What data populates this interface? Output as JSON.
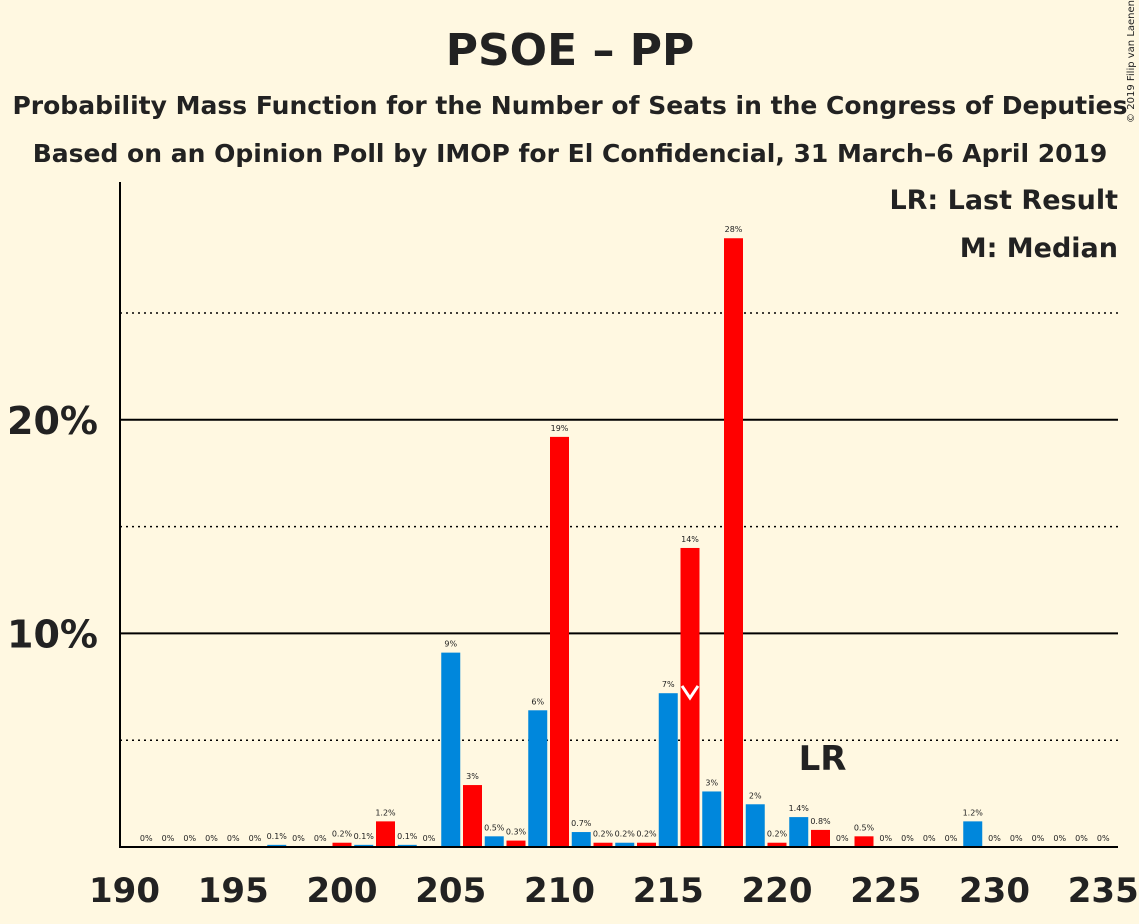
{
  "chart_data": {
    "type": "bar",
    "title": "PSOE – PP",
    "subtitle_1": "Probability Mass Function for the Number of Seats in the Congress of Deputies",
    "subtitle_2": "Based on an Opinion Poll by IMOP for El Confidencial, 31 March–6 April 2019",
    "copyright": "© 2019 Filip van Laenen",
    "legend": {
      "last_result": "LR: Last Result",
      "median": "M: Median",
      "placement": "top-right"
    },
    "lr_marker": {
      "x": 222,
      "label": "LR"
    },
    "median_marker": {
      "x": 216,
      "label": "M"
    },
    "xlim": [
      190,
      235
    ],
    "ylim": [
      0,
      0.31
    ],
    "x_ticks": [
      "190",
      "195",
      "200",
      "205",
      "210",
      "215",
      "220",
      "225",
      "230",
      "235"
    ],
    "y_ticks": [
      {
        "value": 0.1,
        "label": "10%"
      },
      {
        "value": 0.2,
        "label": "20%"
      }
    ],
    "dotted_gridlines": [
      0.05,
      0.15,
      0.25
    ],
    "colors": {
      "blue": "#0087DC",
      "red": "#FF0000",
      "axis": "#000000"
    },
    "bars": [
      {
        "x": 191,
        "value": 0.0,
        "label": "0%",
        "color": "blue"
      },
      {
        "x": 192,
        "value": 0.0,
        "label": "0%",
        "color": "red"
      },
      {
        "x": 193,
        "value": 0.0,
        "label": "0%",
        "color": "blue"
      },
      {
        "x": 194,
        "value": 0.0,
        "label": "0%",
        "color": "red"
      },
      {
        "x": 195,
        "value": 0.0,
        "label": "0%",
        "color": "blue"
      },
      {
        "x": 196,
        "value": 0.0,
        "label": "0%",
        "color": "red"
      },
      {
        "x": 197,
        "value": 0.001,
        "label": "0.1%",
        "color": "blue"
      },
      {
        "x": 198,
        "value": 0.0,
        "label": "0%",
        "color": "red"
      },
      {
        "x": 199,
        "value": 0.0,
        "label": "0%",
        "color": "blue"
      },
      {
        "x": 200,
        "value": 0.002,
        "label": "0.2%",
        "color": "red"
      },
      {
        "x": 201,
        "value": 0.001,
        "label": "0.1%",
        "color": "blue"
      },
      {
        "x": 202,
        "value": 0.012,
        "label": "1.2%",
        "color": "red"
      },
      {
        "x": 203,
        "value": 0.001,
        "label": "0.1%",
        "color": "blue"
      },
      {
        "x": 204,
        "value": 0.0,
        "label": "0%",
        "color": "red"
      },
      {
        "x": 205,
        "value": 0.091,
        "label": "9%",
        "color": "blue"
      },
      {
        "x": 206,
        "value": 0.029,
        "label": "3%",
        "color": "red"
      },
      {
        "x": 207,
        "value": 0.005,
        "label": "0.5%",
        "color": "blue"
      },
      {
        "x": 208,
        "value": 0.003,
        "label": "0.3%",
        "color": "red"
      },
      {
        "x": 209,
        "value": 0.064,
        "label": "6%",
        "color": "blue"
      },
      {
        "x": 210,
        "value": 0.192,
        "label": "19%",
        "color": "red"
      },
      {
        "x": 211,
        "value": 0.007,
        "label": "0.7%",
        "color": "blue"
      },
      {
        "x": 212,
        "value": 0.002,
        "label": "0.2%",
        "color": "red"
      },
      {
        "x": 213,
        "value": 0.002,
        "label": "0.2%",
        "color": "blue"
      },
      {
        "x": 214,
        "value": 0.002,
        "label": "0.2%",
        "color": "red"
      },
      {
        "x": 215,
        "value": 0.072,
        "label": "7%",
        "color": "blue"
      },
      {
        "x": 216,
        "value": 0.14,
        "label": "14%",
        "color": "red"
      },
      {
        "x": 217,
        "value": 0.026,
        "label": "3%",
        "color": "blue"
      },
      {
        "x": 218,
        "value": 0.285,
        "label": "28%",
        "color": "red"
      },
      {
        "x": 219,
        "value": 0.02,
        "label": "2%",
        "color": "blue"
      },
      {
        "x": 220,
        "value": 0.002,
        "label": "0.2%",
        "color": "red"
      },
      {
        "x": 221,
        "value": 0.014,
        "label": "1.4%",
        "color": "blue"
      },
      {
        "x": 222,
        "value": 0.008,
        "label": "0.8%",
        "color": "red"
      },
      {
        "x": 223,
        "value": 0.0,
        "label": "0%",
        "color": "blue"
      },
      {
        "x": 224,
        "value": 0.005,
        "label": "0.5%",
        "color": "red"
      },
      {
        "x": 225,
        "value": 0.0,
        "label": "0%",
        "color": "blue"
      },
      {
        "x": 226,
        "value": 0.0,
        "label": "0%",
        "color": "red"
      },
      {
        "x": 227,
        "value": 0.0,
        "label": "0%",
        "color": "blue"
      },
      {
        "x": 228,
        "value": 0.0,
        "label": "0%",
        "color": "red"
      },
      {
        "x": 229,
        "value": 0.012,
        "label": "1.2%",
        "color": "blue"
      },
      {
        "x": 230,
        "value": 0.0,
        "label": "0%",
        "color": "red"
      },
      {
        "x": 231,
        "value": 0.0,
        "label": "0%",
        "color": "blue"
      },
      {
        "x": 232,
        "value": 0.0,
        "label": "0%",
        "color": "red"
      },
      {
        "x": 233,
        "value": 0.0,
        "label": "0%",
        "color": "blue"
      },
      {
        "x": 234,
        "value": 0.0,
        "label": "0%",
        "color": "red"
      },
      {
        "x": 235,
        "value": 0.0,
        "label": "0%",
        "color": "blue"
      }
    ]
  }
}
